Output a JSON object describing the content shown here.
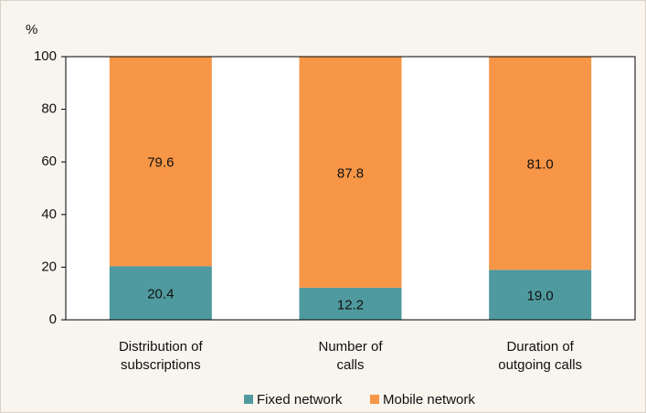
{
  "chart_data": {
    "type": "stacked_bar",
    "y_label": "%",
    "categories": [
      "Distribution of subscriptions",
      "Number of calls",
      "Duration of outgoing calls"
    ],
    "series": [
      {
        "name": "Fixed network",
        "color": "#4f9a9e",
        "values": [
          20.4,
          12.2,
          19
        ],
        "value_labels": [
          "20.4",
          "12.2",
          "19.0"
        ]
      },
      {
        "name": "Mobile network",
        "color": "#f79646",
        "values": [
          79.6,
          87.8,
          81
        ],
        "value_labels": [
          "79.6",
          "87.8",
          "81.0"
        ]
      }
    ],
    "ylim": [
      0,
      100
    ],
    "yticks": [
      0,
      20,
      40,
      60,
      80,
      100
    ],
    "legend": "bottom"
  }
}
